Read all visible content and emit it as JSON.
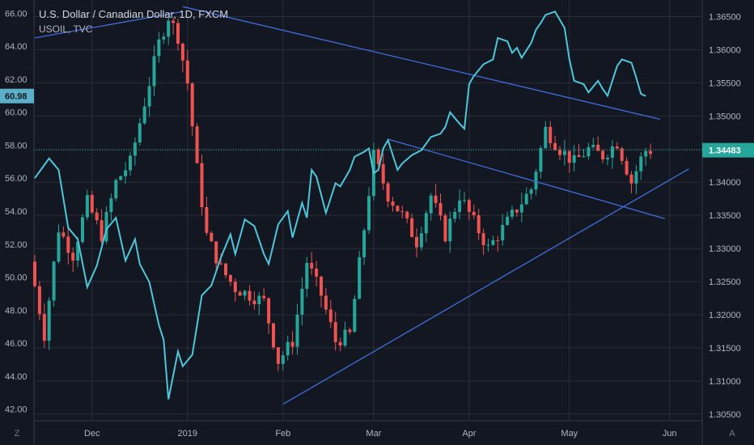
{
  "legend": {
    "title": "U.S. Dollar / Canadian Dollar, 1D, FXCM",
    "subtitle": "USOIL, TVC"
  },
  "axis_buttons": {
    "left": "Z",
    "right": "A"
  },
  "chart_data": {
    "type": "candlestick",
    "title": "U.S. Dollar / Canadian Dollar, 1D, FXCM",
    "x_labels": [
      "Dec",
      "2019",
      "Feb",
      "Mar",
      "Apr",
      "May",
      "Jun"
    ],
    "left_axis": {
      "series": "USOIL, TVC",
      "ylim": [
        41.3,
        66.8
      ],
      "ticks": [
        "42.00",
        "44.00",
        "46.00",
        "48.00",
        "50.00",
        "52.00",
        "54.00",
        "56.00",
        "58.00",
        "60.00",
        "62.00",
        "64.00",
        "66.00"
      ],
      "last_value": "60.98"
    },
    "right_axis": {
      "series": "USDCAD",
      "ylim": [
        1.304,
        1.3675
      ],
      "ticks": [
        "1.30500",
        "1.31000",
        "1.31500",
        "1.32000",
        "1.32500",
        "1.33000",
        "1.33500",
        "1.34000",
        "1.34500",
        "1.35000",
        "1.35500",
        "1.36000",
        "1.36500"
      ],
      "last_value": "1.34483"
    },
    "usoil_line": [
      [
        0,
        56.0
      ],
      [
        3,
        57.2
      ],
      [
        5,
        56.5
      ],
      [
        7,
        53.0
      ],
      [
        9,
        52.3
      ],
      [
        11,
        49.4
      ],
      [
        13,
        50.7
      ],
      [
        15,
        52.9
      ],
      [
        17,
        53.6
      ],
      [
        19,
        51.0
      ],
      [
        21,
        52.3
      ],
      [
        22,
        50.8
      ],
      [
        24,
        49.7
      ],
      [
        26,
        47.1
      ],
      [
        27,
        46.2
      ],
      [
        28,
        42.6
      ],
      [
        30,
        45.5
      ],
      [
        31,
        44.6
      ],
      [
        33,
        45.3
      ],
      [
        35,
        48.9
      ],
      [
        37,
        49.5
      ],
      [
        39,
        51.2
      ],
      [
        41,
        52.6
      ],
      [
        42,
        51.4
      ],
      [
        44,
        53.5
      ],
      [
        46,
        53.1
      ],
      [
        48,
        51.4
      ],
      [
        49,
        50.8
      ],
      [
        51,
        53.2
      ],
      [
        53,
        54.0
      ],
      [
        54,
        52.4
      ],
      [
        56,
        54.5
      ],
      [
        57,
        53.6
      ],
      [
        58,
        56.5
      ],
      [
        59,
        56.1
      ],
      [
        61,
        53.9
      ],
      [
        63,
        55.7
      ],
      [
        64,
        55.5
      ],
      [
        66,
        56.5
      ],
      [
        67,
        57.3
      ],
      [
        69,
        57.6
      ],
      [
        70,
        57.8
      ],
      [
        71,
        56.3
      ],
      [
        72,
        56.5
      ],
      [
        73,
        57.8
      ],
      [
        74,
        58.3
      ],
      [
        76,
        56.5
      ],
      [
        77,
        56.9
      ],
      [
        79,
        57.4
      ],
      [
        81,
        57.7
      ],
      [
        83,
        58.5
      ],
      [
        85,
        58.7
      ],
      [
        86,
        59.1
      ],
      [
        87,
        60.0
      ],
      [
        89,
        59.3
      ],
      [
        90,
        59.0
      ],
      [
        91,
        61.7
      ],
      [
        92,
        62.2
      ],
      [
        94,
        62.9
      ],
      [
        96,
        63.2
      ],
      [
        97,
        64.5
      ],
      [
        99,
        64.3
      ],
      [
        100,
        63.6
      ],
      [
        101,
        63.9
      ],
      [
        102,
        63.3
      ],
      [
        104,
        64.2
      ],
      [
        105,
        65.0
      ],
      [
        106,
        65.4
      ],
      [
        107,
        65.9
      ],
      [
        109,
        66.1
      ],
      [
        111,
        65.1
      ],
      [
        112,
        63.2
      ],
      [
        113,
        61.9
      ],
      [
        115,
        61.7
      ],
      [
        116,
        61.2
      ],
      [
        118,
        61.9
      ],
      [
        119,
        61.4
      ],
      [
        120,
        61.0
      ],
      [
        121,
        61.9
      ],
      [
        122,
        62.8
      ],
      [
        123,
        63.2
      ],
      [
        125,
        63.0
      ],
      [
        126,
        62.1
      ],
      [
        127,
        61.1
      ],
      [
        128,
        60.98
      ]
    ],
    "trendlines": [
      {
        "name": "oil-upper",
        "axis": "left",
        "from": [
          0,
          64.5
        ],
        "to": [
          31,
          66.1
        ]
      },
      {
        "name": "usdcad-upper",
        "axis": "right",
        "from": [
          31,
          1.3665
        ],
        "to": [
          131,
          1.3495
        ]
      },
      {
        "name": "usdcad-channel",
        "axis": "right",
        "from": [
          74,
          1.3465
        ],
        "to": [
          132,
          1.3345
        ]
      },
      {
        "name": "usdcad-lower",
        "axis": "right",
        "from": [
          52,
          1.3065
        ],
        "to": [
          137,
          1.342
        ]
      }
    ],
    "usdcad_candles_note": "daily OHLC, FXCM",
    "colors": {
      "up": "#26a69a",
      "down": "#ef5350",
      "usoil": "#4dc7d9",
      "trend": "#3f6edc",
      "grid": "#2a2e39"
    }
  }
}
